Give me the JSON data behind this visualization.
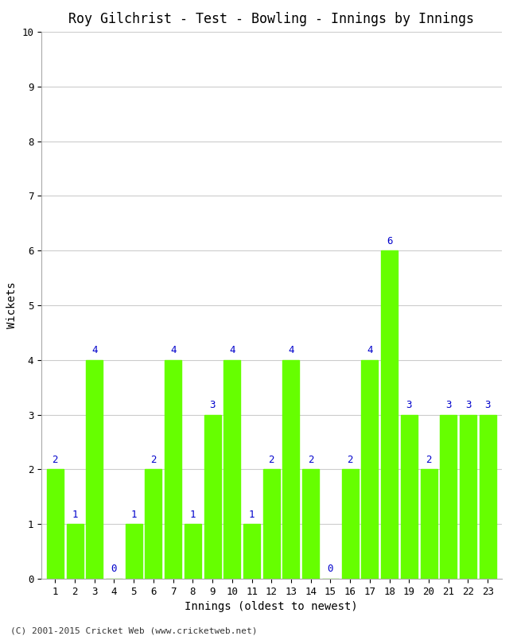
{
  "title": "Roy Gilchrist - Test - Bowling - Innings by Innings",
  "xlabel": "Innings (oldest to newest)",
  "ylabel": "Wickets",
  "innings": [
    1,
    2,
    3,
    4,
    5,
    6,
    7,
    8,
    9,
    10,
    11,
    12,
    13,
    14,
    15,
    16,
    17,
    18,
    19,
    20,
    21,
    22,
    23
  ],
  "wickets": [
    2,
    1,
    4,
    0,
    1,
    2,
    4,
    1,
    3,
    4,
    1,
    2,
    4,
    2,
    0,
    2,
    4,
    6,
    3,
    2,
    3,
    3,
    3
  ],
  "bar_color": "#66ff00",
  "label_color": "#0000cc",
  "background_color": "#ffffff",
  "grid_color": "#cccccc",
  "spine_color": "#aaaaaa",
  "ylim": [
    0,
    10
  ],
  "yticks": [
    0,
    1,
    2,
    3,
    4,
    5,
    6,
    7,
    8,
    9,
    10
  ],
  "title_fontsize": 12,
  "axis_label_fontsize": 10,
  "tick_fontsize": 9,
  "label_fontsize": 9,
  "footer": "(C) 2001-2015 Cricket Web (www.cricketweb.net)",
  "footer_fontsize": 8,
  "bar_width": 0.85
}
